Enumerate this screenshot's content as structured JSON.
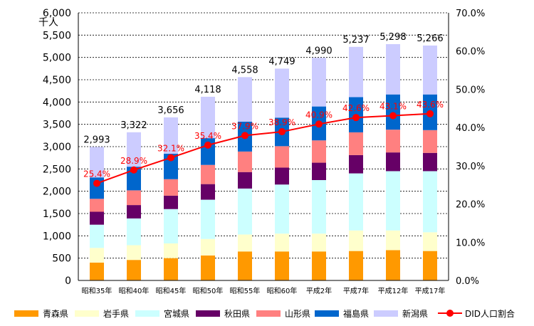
{
  "chart_data": {
    "type": "bar",
    "stacked": true,
    "unit_label": "千人",
    "categories": [
      "昭和35年",
      "昭和40年",
      "昭和45年",
      "昭和50年",
      "昭和55年",
      "昭和60年",
      "平成2年",
      "平成7年",
      "平成12年",
      "平成17年"
    ],
    "series": [
      {
        "name": "青森県",
        "color": "#ff9900",
        "values": [
          400,
          460,
          500,
          560,
          650,
          650,
          650,
          660,
          680,
          660
        ]
      },
      {
        "name": "岩手県",
        "color": "#ffffcc",
        "values": [
          330,
          330,
          330,
          370,
          380,
          400,
          400,
          460,
          440,
          420
        ]
      },
      {
        "name": "宮城県",
        "color": "#ccffff",
        "values": [
          520,
          600,
          770,
          880,
          1030,
          1100,
          1200,
          1280,
          1330,
          1370
        ]
      },
      {
        "name": "秋田県",
        "color": "#660066",
        "values": [
          290,
          300,
          300,
          350,
          370,
          380,
          390,
          410,
          420,
          410
        ]
      },
      {
        "name": "山形県",
        "color": "#ff8080",
        "values": [
          290,
          330,
          370,
          430,
          460,
          480,
          500,
          510,
          510,
          510
        ]
      },
      {
        "name": "福島県",
        "color": "#0066cc",
        "values": [
          480,
          530,
          570,
          600,
          670,
          640,
          760,
          790,
          790,
          800
        ]
      },
      {
        "name": "新潟県",
        "color": "#ccccff",
        "values": [
          683,
          772,
          816,
          928,
          998,
          1099,
          1090,
          1127,
          1128,
          1096
        ]
      }
    ],
    "totals": [
      2993,
      3322,
      3656,
      4118,
      4558,
      4749,
      4990,
      5237,
      5298,
      5266
    ],
    "total_labels": [
      "2,993",
      "3,322",
      "3,656",
      "4,118",
      "4,558",
      "4,749",
      "4,990",
      "5,237",
      "5,298",
      "5,266"
    ],
    "line_series": {
      "name": "DID人口割合",
      "color": "#ff0000",
      "values": [
        25.4,
        28.9,
        32.1,
        35.4,
        37.9,
        38.9,
        40.9,
        42.6,
        43.1,
        43.6
      ],
      "labels": [
        "25.4%",
        "28.9%",
        "32.1%",
        "35.4%",
        "37.9%",
        "38.9%",
        "40.9%",
        "42.6%",
        "43.1%",
        "43.6%"
      ]
    },
    "y_left": {
      "min": 0,
      "max": 6000,
      "step": 500,
      "ticks": [
        "0",
        "500",
        "1,000",
        "1,500",
        "2,000",
        "2,500",
        "3,000",
        "3,500",
        "4,000",
        "4,500",
        "5,000",
        "5,500",
        "6,000"
      ]
    },
    "y_right": {
      "min": 0,
      "max": 70,
      "step": 10,
      "ticks": [
        "0.0%",
        "10.0%",
        "20.0%",
        "30.0%",
        "40.0%",
        "50.0%",
        "60.0%",
        "70.0%"
      ]
    },
    "grid": true,
    "legend_position": "bottom"
  }
}
